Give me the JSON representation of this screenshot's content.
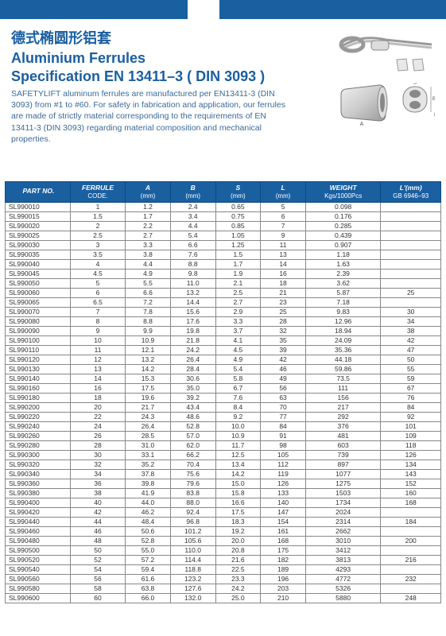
{
  "colors": {
    "primary": "#1a5fa0",
    "text_desc": "#3a6a9a",
    "border": "#888"
  },
  "header": {
    "cn_title": "德式椭圆形铝套",
    "en_title_l1": "Aluminium Ferrules",
    "en_title_l2": "Specification EN 13411–3 ( DIN 3093 )",
    "description": "SAFETYLIFT aluminum ferrules are manufactured per EN13411-3 (DIN 3093) from #1 to #60. For safety in fabrication and application, our ferrules are made of strictly material corresponding to the requirements of EN 13411-3 (DIN 3093) regarding material composition and mechanical properties."
  },
  "diagram_labels": {
    "A": "A",
    "B": "B",
    "S": "S",
    "L": "L"
  },
  "table": {
    "columns": [
      {
        "label": "PART NO.",
        "unit": ""
      },
      {
        "label": "FERRULE",
        "unit": "CODE."
      },
      {
        "label": "A",
        "unit": "(mm)"
      },
      {
        "label": "B",
        "unit": "(mm)"
      },
      {
        "label": "S",
        "unit": "(mm)"
      },
      {
        "label": "L",
        "unit": "(mm)"
      },
      {
        "label": "WEIGHT",
        "unit": "Kgs/1000Pcs"
      },
      {
        "label": "L'(mm)",
        "unit": "GB 6946–93"
      }
    ],
    "rows": [
      [
        "SL990010",
        "1",
        "1.2",
        "2.4",
        "0.65",
        "5",
        "0.098",
        ""
      ],
      [
        "SL990015",
        "1.5",
        "1.7",
        "3.4",
        "0.75",
        "6",
        "0.176",
        ""
      ],
      [
        "SL990020",
        "2",
        "2.2",
        "4.4",
        "0.85",
        "7",
        "0.285",
        ""
      ],
      [
        "SL990025",
        "2.5",
        "2.7",
        "5.4",
        "1.05",
        "9",
        "0.439",
        ""
      ],
      [
        "SL990030",
        "3",
        "3.3",
        "6.6",
        "1.25",
        "11",
        "0.907",
        ""
      ],
      [
        "SL990035",
        "3.5",
        "3.8",
        "7.6",
        "1.5",
        "13",
        "1.18",
        ""
      ],
      [
        "SL990040",
        "4",
        "4.4",
        "8.8",
        "1.7",
        "14",
        "1.63",
        ""
      ],
      [
        "SL990045",
        "4.5",
        "4.9",
        "9.8",
        "1.9",
        "16",
        "2.39",
        ""
      ],
      [
        "SL990050",
        "5",
        "5.5",
        "11.0",
        "2.1",
        "18",
        "3.62",
        ""
      ],
      [
        "SL990060",
        "6",
        "6.6",
        "13.2",
        "2.5",
        "21",
        "5.87",
        "25"
      ],
      [
        "SL990065",
        "6.5",
        "7.2",
        "14.4",
        "2.7",
        "23",
        "7.18",
        ""
      ],
      [
        "SL990070",
        "7",
        "7.8",
        "15.6",
        "2.9",
        "25",
        "9.83",
        "30"
      ],
      [
        "SL990080",
        "8",
        "8.8",
        "17.6",
        "3.3",
        "28",
        "12.96",
        "34"
      ],
      [
        "SL990090",
        "9",
        "9.9",
        "19.8",
        "3.7",
        "32",
        "18.94",
        "38"
      ],
      [
        "SL990100",
        "10",
        "10.9",
        "21.8",
        "4.1",
        "35",
        "24.09",
        "42"
      ],
      [
        "SL990110",
        "11",
        "12.1",
        "24.2",
        "4.5",
        "39",
        "35.36",
        "47"
      ],
      [
        "SL990120",
        "12",
        "13.2",
        "26.4",
        "4.9",
        "42",
        "44.18",
        "50"
      ],
      [
        "SL990130",
        "13",
        "14.2",
        "28.4",
        "5.4",
        "46",
        "59.86",
        "55"
      ],
      [
        "SL990140",
        "14",
        "15.3",
        "30.6",
        "5.8",
        "49",
        "73.5",
        "59"
      ],
      [
        "SL990160",
        "16",
        "17.5",
        "35.0",
        "6.7",
        "56",
        "111",
        "67"
      ],
      [
        "SL990180",
        "18",
        "19.6",
        "39.2",
        "7.6",
        "63",
        "156",
        "76"
      ],
      [
        "SL990200",
        "20",
        "21.7",
        "43.4",
        "8.4",
        "70",
        "217",
        "84"
      ],
      [
        "SL990220",
        "22",
        "24.3",
        "48.6",
        "9.2",
        "77",
        "292",
        "92"
      ],
      [
        "SL990240",
        "24",
        "26.4",
        "52.8",
        "10.0",
        "84",
        "376",
        "101"
      ],
      [
        "SL990260",
        "26",
        "28.5",
        "57.0",
        "10.9",
        "91",
        "481",
        "109"
      ],
      [
        "SL990280",
        "28",
        "31.0",
        "62.0",
        "11.7",
        "98",
        "603",
        "118"
      ],
      [
        "SL990300",
        "30",
        "33.1",
        "66.2",
        "12.5",
        "105",
        "739",
        "126"
      ],
      [
        "SL990320",
        "32",
        "35.2",
        "70.4",
        "13.4",
        "112",
        "897",
        "134"
      ],
      [
        "SL990340",
        "34",
        "37.8",
        "75.6",
        "14.2",
        "119",
        "1077",
        "143"
      ],
      [
        "SL990360",
        "36",
        "39.8",
        "79.6",
        "15.0",
        "126",
        "1275",
        "152"
      ],
      [
        "SL990380",
        "38",
        "41.9",
        "83.8",
        "15.8",
        "133",
        "1503",
        "160"
      ],
      [
        "SL990400",
        "40",
        "44.0",
        "88.0",
        "16.6",
        "140",
        "1734",
        "168"
      ],
      [
        "SL990420",
        "42",
        "46.2",
        "92.4",
        "17.5",
        "147",
        "2024",
        ""
      ],
      [
        "SL990440",
        "44",
        "48.4",
        "96.8",
        "18.3",
        "154",
        "2314",
        "184"
      ],
      [
        "SL990460",
        "46",
        "50.6",
        "101.2",
        "19.2",
        "161",
        "2662",
        ""
      ],
      [
        "SL990480",
        "48",
        "52.8",
        "105.6",
        "20.0",
        "168",
        "3010",
        "200"
      ],
      [
        "SL990500",
        "50",
        "55.0",
        "110.0",
        "20.8",
        "175",
        "3412",
        ""
      ],
      [
        "SL990520",
        "52",
        "57.2",
        "114.4",
        "21.6",
        "182",
        "3813",
        "216"
      ],
      [
        "SL990540",
        "54",
        "59.4",
        "118.8",
        "22.5",
        "189",
        "4293",
        ""
      ],
      [
        "SL990560",
        "56",
        "61.6",
        "123.2",
        "23.3",
        "196",
        "4772",
        "232"
      ],
      [
        "SL990580",
        "58",
        "63.8",
        "127.6",
        "24.2",
        "203",
        "5326",
        ""
      ],
      [
        "SL990600",
        "60",
        "66.0",
        "132.0",
        "25.0",
        "210",
        "5880",
        "248"
      ]
    ]
  }
}
